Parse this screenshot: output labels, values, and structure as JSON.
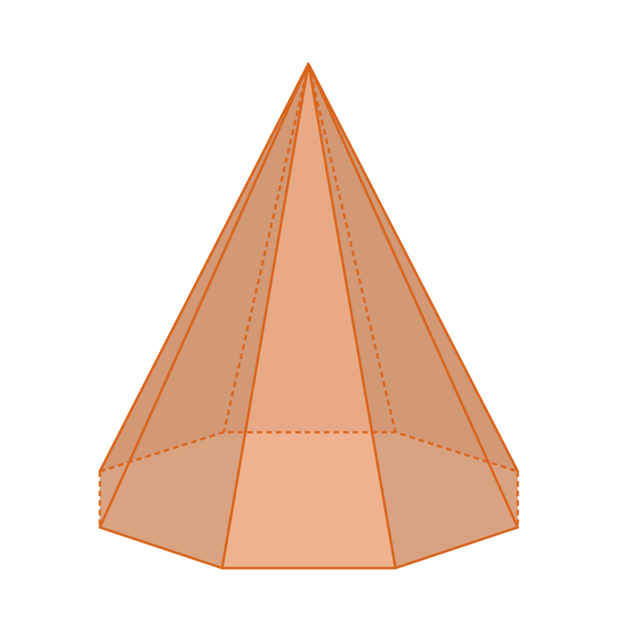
{
  "figure": {
    "shape": "octagonal pyramid",
    "base_sides": 8,
    "colors": {
      "edge": "#D9661F",
      "back_face": "#C98A63",
      "side_face_dark": "#D49A76",
      "front_face": "#ECAE88",
      "base_side": "#E5BEA2",
      "base_front": "#F9CCAD",
      "background": "#FFFFFF"
    }
  }
}
